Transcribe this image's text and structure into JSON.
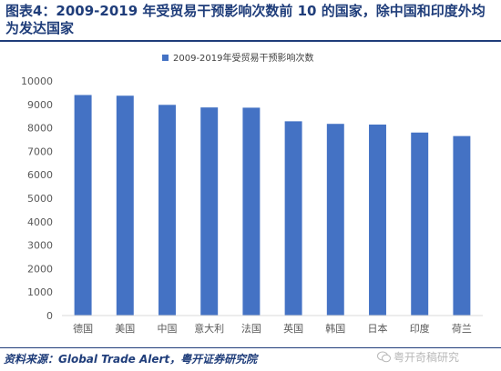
{
  "figure": {
    "title": "图表4：2009-2019 年受贸易干预影响次数前 10 的国家，除中国和印度外均为发达国家",
    "source": "资料来源：Global Trade Alert，粤开证券研究院",
    "watermark": "粤开奇稿研究"
  },
  "chart_data": {
    "type": "bar",
    "categories": [
      "德国",
      "美国",
      "中国",
      "意大利",
      "法国",
      "英国",
      "韩国",
      "日本",
      "印度",
      "荷兰"
    ],
    "series": [
      {
        "name": "2009-2019年受贸易干预影响次数",
        "values": [
          9400,
          9370,
          8980,
          8870,
          8860,
          8280,
          8170,
          8140,
          7800,
          7650
        ]
      }
    ],
    "ylim": [
      0,
      10000
    ],
    "yticks": [
      0,
      1000,
      2000,
      3000,
      4000,
      5000,
      6000,
      7000,
      8000,
      9000,
      10000
    ],
    "grid": false,
    "legend": "top-center",
    "colors": {
      "bar": "#4472c4",
      "title": "#1f3d7a",
      "axis": "#d9d9d9",
      "tick_text": "#595959"
    }
  }
}
